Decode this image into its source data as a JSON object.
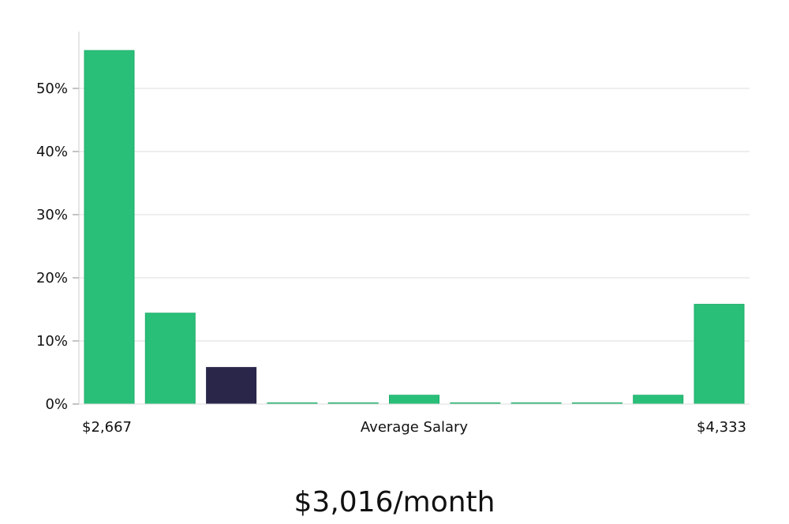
{
  "chart_data": {
    "type": "bar",
    "values": [
      56,
      14.4,
      5.8,
      0,
      0,
      1.4,
      0,
      0,
      0,
      1.4,
      15.8
    ],
    "highlight_index": 2,
    "yticks": [
      {
        "value": 0,
        "label": "0%"
      },
      {
        "value": 10,
        "label": "10%"
      },
      {
        "value": 20,
        "label": "20%"
      },
      {
        "value": 30,
        "label": "30%"
      },
      {
        "value": 40,
        "label": "40%"
      },
      {
        "value": 50,
        "label": "50%"
      }
    ],
    "ylim": [
      0,
      58
    ],
    "x_left_label": "$2,667",
    "x_right_label": "$4,333",
    "xlabel": "Average Salary",
    "grid": true,
    "colors": {
      "bar": "#2abf79",
      "bar_edge": "#1fae6a",
      "highlight": "#29264a",
      "grid": "#dddddd",
      "axis": "#cccccc"
    }
  },
  "headline": "$3,016/month"
}
